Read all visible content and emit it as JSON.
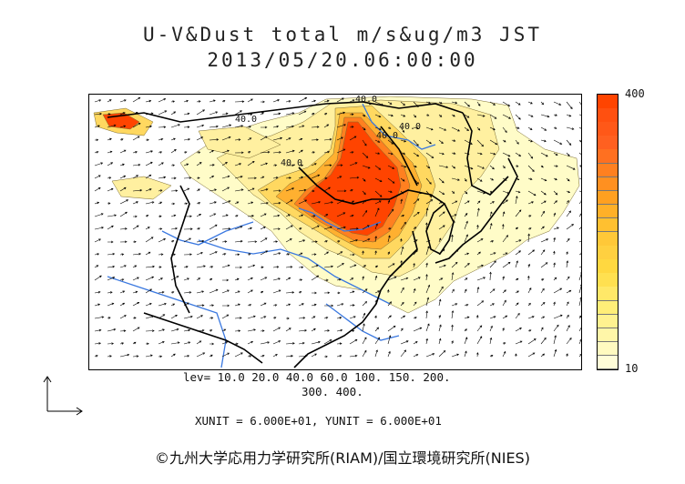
{
  "header": {
    "title": "U-V&Dust total m/s&ug/m3 JST",
    "timestamp": "2013/05/20.06:00:00"
  },
  "map": {
    "contour_labels": [
      "40.0",
      "40.0",
      "40.0",
      "40.0",
      "40.0"
    ],
    "fill_colors": {
      "level_10": "#fffcc8",
      "level_20": "#fff0a0",
      "level_40": "#ffd860",
      "level_60": "#ffb030",
      "level_100": "#ff8020",
      "level_150": "#ff6020",
      "level_200": "#ff5018",
      "level_300": "#ff4a10",
      "level_400": "#ff4400"
    },
    "coastline_color": "#000000",
    "river_color": "#3a78e0",
    "vector_color": "#000000"
  },
  "colorbar": {
    "max_label": "400",
    "min_label": "10",
    "colors": [
      "#fffdd8",
      "#fffac0",
      "#fff6a8",
      "#fff290",
      "#ffee78",
      "#ffe868",
      "#ffe050",
      "#ffd840",
      "#ffd040",
      "#ffc838",
      "#ffc030",
      "#ffb028",
      "#ffa020",
      "#ff9020",
      "#ff8020",
      "#ff7020",
      "#ff6020",
      "#ff5818",
      "#ff5010",
      "#ff4400"
    ]
  },
  "footer": {
    "levels_line1": "lev= 10.0 20.0 40.0 60.0 100. 150. 200.",
    "levels_line2": "300. 400.",
    "unit_line": "XUNIT = 6.000E+01, YUNIT = 6.000E+01",
    "copyright": "©九州大学応用力学研究所(RIAM)/国立環境研究所(NIES)"
  }
}
